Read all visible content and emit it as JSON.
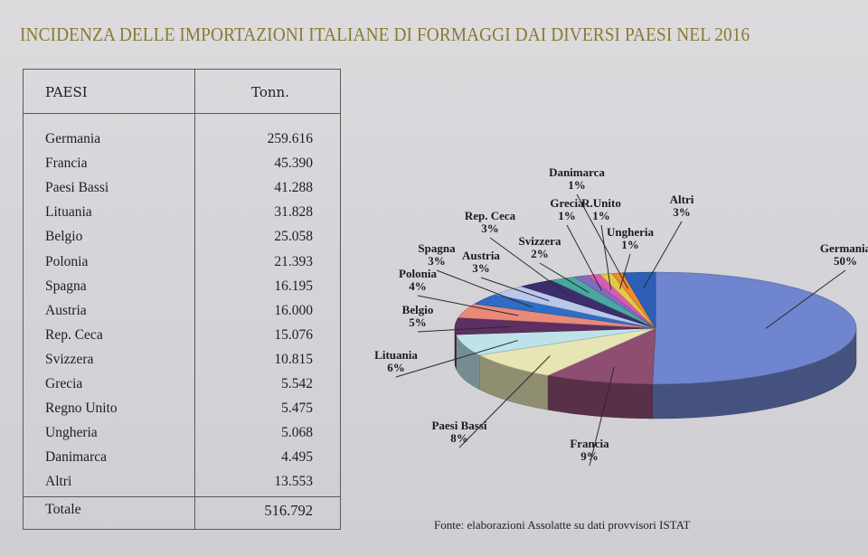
{
  "title": "INCIDENZA DELLE IMPORTAZIONI ITALIANE DI FORMAGGI DAI DIVERSI PAESI NEL 2016",
  "table": {
    "col_country": "PAESI",
    "col_tonnes": "Tonn.",
    "rows": [
      {
        "country": "Germania",
        "tonnes": "259.616"
      },
      {
        "country": "Francia",
        "tonnes": "45.390"
      },
      {
        "country": "Paesi Bassi",
        "tonnes": "41.288"
      },
      {
        "country": "Lituania",
        "tonnes": "31.828"
      },
      {
        "country": "Belgio",
        "tonnes": "25.058"
      },
      {
        "country": "Polonia",
        "tonnes": "21.393"
      },
      {
        "country": "Spagna",
        "tonnes": "16.195"
      },
      {
        "country": "Austria",
        "tonnes": "16.000"
      },
      {
        "country": "Rep. Ceca",
        "tonnes": "15.076"
      },
      {
        "country": "Svizzera",
        "tonnes": "10.815"
      },
      {
        "country": "Grecia",
        "tonnes": "5.542"
      },
      {
        "country": "Regno Unito",
        "tonnes": "5.475"
      },
      {
        "country": "Ungheria",
        "tonnes": "5.068"
      },
      {
        "country": "Danimarca",
        "tonnes": "4.495"
      },
      {
        "country": "Altri",
        "tonnes": "13.553"
      }
    ],
    "total_label": "Totale",
    "total_value": "516.792"
  },
  "source": "Fonte: elaborazioni Assolatte su dati provvisori ISTAT",
  "chart_data": {
    "type": "pie",
    "slices": [
      {
        "label": "Germania",
        "value": 259616,
        "pct_label": "50%",
        "color": "#6f85cf"
      },
      {
        "label": "Francia",
        "value": 45390,
        "pct_label": "9%",
        "color": "#8e4e72"
      },
      {
        "label": "Paesi Bassi",
        "value": 41288,
        "pct_label": "8%",
        "color": "#e7e5b4"
      },
      {
        "label": "Lituania",
        "value": 31828,
        "pct_label": "6%",
        "color": "#bde3e8"
      },
      {
        "label": "Belgio",
        "value": 25058,
        "pct_label": "5%",
        "color": "#5d2f62"
      },
      {
        "label": "Polonia",
        "value": 21393,
        "pct_label": "4%",
        "color": "#e9897a"
      },
      {
        "label": "Spagna",
        "value": 16195,
        "pct_label": "3%",
        "color": "#2f6cc4"
      },
      {
        "label": "Austria",
        "value": 16000,
        "pct_label": "3%",
        "color": "#b9c7ea"
      },
      {
        "label": "Rep. Ceca",
        "value": 15076,
        "pct_label": "3%",
        "color": "#3c2d6e"
      },
      {
        "label": "Svizzera",
        "value": 10815,
        "pct_label": "2%",
        "color": "#4aa89e"
      },
      {
        "label": "Grecia",
        "value": 5542,
        "pct_label": "1%",
        "color": "#7f6cc2"
      },
      {
        "label": "R.Unito",
        "value": 5475,
        "pct_label": "1%",
        "color": "#d85ab4"
      },
      {
        "label": "Ungheria",
        "value": 5068,
        "pct_label": "1%",
        "color": "#e3c84a"
      },
      {
        "label": "Danimarca",
        "value": 4495,
        "pct_label": "1%",
        "color": "#f08a2e"
      },
      {
        "label": "Altri",
        "value": 13553,
        "pct_label": "3%",
        "color": "#2d5fb8"
      }
    ]
  }
}
